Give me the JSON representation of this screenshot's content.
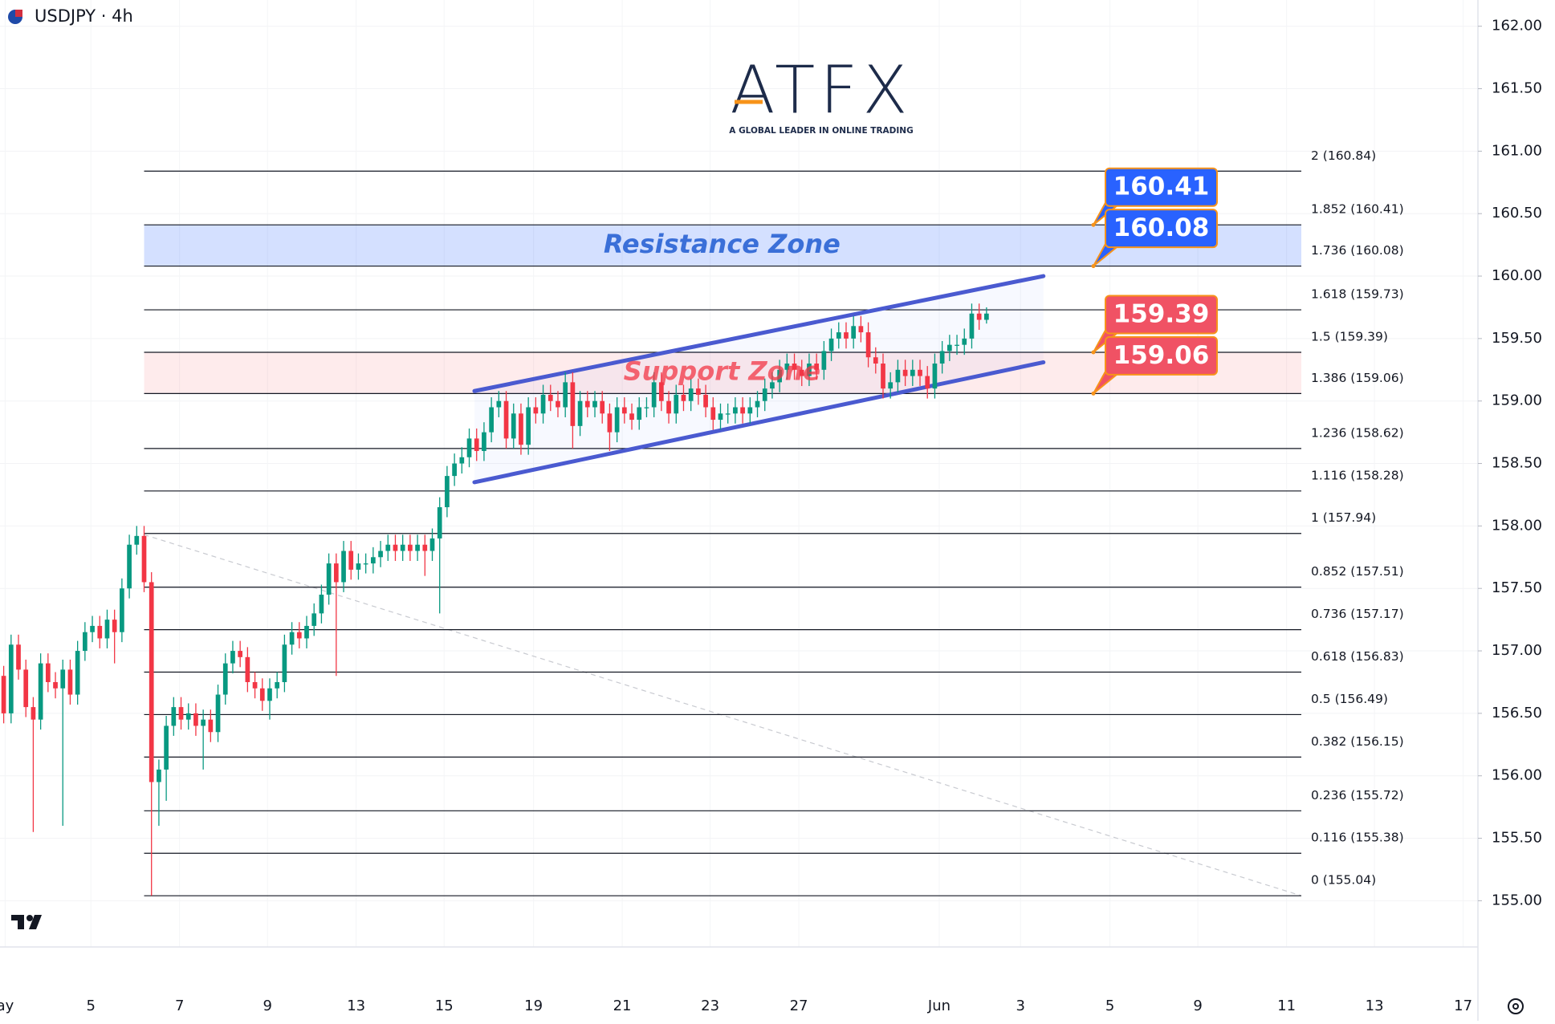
{
  "branding": {
    "logo": "ATFX",
    "tagline": "A GLOBAL LEADER IN ONLINE TRADING"
  },
  "chart_data": {
    "type": "candlestick",
    "title": "USDJPY · 4h",
    "up_color": "#089981",
    "down_color": "#f23645",
    "grid": true,
    "ylim": [
      154.63,
      162.21
    ],
    "yticks": [
      {
        "value": 155,
        "label": "155.00"
      },
      {
        "value": 155.5,
        "label": "155.50"
      },
      {
        "value": 156,
        "label": "156.00"
      },
      {
        "value": 156.5,
        "label": "156.50"
      },
      {
        "value": 157,
        "label": "157.00"
      },
      {
        "value": 157.5,
        "label": "157.50"
      },
      {
        "value": 158,
        "label": "158.00"
      },
      {
        "value": 158.5,
        "label": "158.50"
      },
      {
        "value": 159,
        "label": "159.00"
      },
      {
        "value": 159.5,
        "label": "159.50"
      },
      {
        "value": 160,
        "label": "160.00"
      },
      {
        "value": 160.5,
        "label": "160.50"
      },
      {
        "value": 161,
        "label": "161.00"
      },
      {
        "value": 161.5,
        "label": "161.50"
      },
      {
        "value": 162,
        "label": "162.00"
      }
    ],
    "xlim": [
      -0.5,
      199.5
    ],
    "xticks": [
      {
        "value": 0.2,
        "label": "ay"
      },
      {
        "value": 11.8,
        "label": "5"
      },
      {
        "value": 23.8,
        "label": "7"
      },
      {
        "value": 35.7,
        "label": "9"
      },
      {
        "value": 47.7,
        "label": "13"
      },
      {
        "value": 59.6,
        "label": "15"
      },
      {
        "value": 71.7,
        "label": "19"
      },
      {
        "value": 83.7,
        "label": "21"
      },
      {
        "value": 95.6,
        "label": "23"
      },
      {
        "value": 107.6,
        "label": "27"
      },
      {
        "value": 126.6,
        "label": "Jun"
      },
      {
        "value": 137.6,
        "label": "3"
      },
      {
        "value": 149.7,
        "label": "5"
      },
      {
        "value": 161.6,
        "label": "9"
      },
      {
        "value": 173.6,
        "label": "11"
      },
      {
        "value": 185.5,
        "label": "13"
      },
      {
        "value": 197.5,
        "label": "17"
      }
    ],
    "open": [
      156.8,
      156.5,
      157.05,
      156.85,
      156.55,
      156.45,
      156.9,
      156.75,
      156.7,
      156.85,
      156.65,
      157.0,
      157.15,
      157.2,
      157.1,
      157.25,
      157.15,
      157.5,
      157.85,
      157.92,
      157.55,
      155.95,
      156.05,
      156.4,
      156.55,
      156.45,
      156.5,
      156.4,
      156.45,
      156.35,
      156.65,
      156.9,
      157.0,
      156.95,
      156.75,
      156.7,
      156.6,
      156.7,
      156.75,
      157.05,
      157.15,
      157.1,
      157.2,
      157.3,
      157.45,
      157.7,
      157.55,
      157.8,
      157.65,
      157.7,
      157.7,
      157.75,
      157.8,
      157.85,
      157.8,
      157.85,
      157.8,
      157.85,
      157.8,
      157.9,
      158.15,
      158.4,
      158.5,
      158.55,
      158.7,
      158.6,
      158.75,
      158.95,
      159.0,
      158.7,
      158.9,
      158.65,
      158.95,
      158.9,
      159.05,
      159.0,
      158.95,
      159.15,
      158.8,
      159.0,
      158.95,
      159.0,
      158.9,
      158.75,
      158.95,
      158.9,
      158.85,
      158.95,
      158.95,
      159.15,
      159.0,
      158.9,
      159.05,
      159.0,
      159.1,
      159.05,
      158.95,
      158.85,
      158.9,
      158.9,
      158.95,
      158.9,
      158.95,
      159.0,
      159.1,
      159.15,
      159.25,
      159.3,
      159.25,
      159.2,
      159.3,
      159.25,
      159.4,
      159.5,
      159.55,
      159.5,
      159.6,
      159.55,
      159.35,
      159.3,
      159.1,
      159.15,
      159.25,
      159.2,
      159.25,
      159.2,
      159.1,
      159.3,
      159.4,
      159.45,
      159.45,
      159.5,
      159.7,
      159.65
    ],
    "high": [
      156.88,
      157.13,
      157.13,
      156.93,
      156.63,
      156.98,
      156.98,
      156.83,
      156.93,
      156.93,
      157.08,
      157.23,
      157.28,
      157.28,
      157.33,
      157.33,
      157.58,
      157.93,
      158.0,
      158.0,
      157.63,
      156.13,
      156.48,
      156.63,
      156.63,
      156.58,
      156.58,
      156.53,
      156.53,
      156.73,
      156.98,
      157.08,
      157.08,
      157.03,
      156.83,
      156.78,
      156.78,
      156.83,
      157.13,
      157.23,
      157.23,
      157.28,
      157.38,
      157.53,
      157.78,
      157.78,
      157.88,
      157.88,
      157.78,
      157.78,
      157.83,
      157.88,
      157.93,
      157.93,
      157.93,
      157.93,
      157.93,
      157.93,
      157.98,
      158.23,
      158.48,
      158.58,
      158.63,
      158.78,
      158.78,
      158.83,
      159.03,
      159.08,
      159.08,
      158.98,
      158.98,
      159.03,
      159.03,
      159.13,
      159.13,
      159.08,
      159.23,
      159.23,
      159.08,
      159.08,
      159.08,
      159.08,
      158.98,
      159.03,
      159.03,
      158.98,
      159.03,
      159.03,
      159.23,
      159.23,
      159.08,
      159.13,
      159.13,
      159.18,
      159.18,
      159.13,
      159.03,
      158.98,
      158.98,
      159.03,
      159.03,
      159.03,
      159.08,
      159.18,
      159.23,
      159.33,
      159.38,
      159.38,
      159.33,
      159.38,
      159.38,
      159.48,
      159.58,
      159.63,
      159.63,
      159.68,
      159.68,
      159.63,
      159.43,
      159.38,
      159.23,
      159.33,
      159.33,
      159.33,
      159.33,
      159.28,
      159.38,
      159.48,
      159.53,
      159.53,
      159.58,
      159.78,
      159.78,
      159.75
    ],
    "low": [
      156.42,
      156.42,
      156.77,
      156.47,
      155.55,
      156.37,
      156.67,
      156.62,
      155.6,
      156.57,
      156.57,
      156.92,
      157.07,
      157.02,
      157.02,
      156.9,
      157.07,
      157.42,
      157.77,
      157.47,
      155.04,
      155.6,
      155.8,
      156.32,
      156.37,
      156.37,
      156.32,
      156.05,
      156.27,
      156.27,
      156.57,
      156.82,
      156.87,
      156.67,
      156.62,
      156.52,
      156.45,
      156.62,
      156.67,
      156.97,
      157.02,
      157.02,
      157.12,
      157.22,
      157.37,
      156.8,
      157.47,
      157.57,
      157.57,
      157.62,
      157.62,
      157.67,
      157.72,
      157.72,
      157.72,
      157.72,
      157.72,
      157.6,
      157.72,
      157.3,
      158.07,
      158.32,
      158.42,
      158.47,
      158.52,
      158.52,
      158.67,
      158.87,
      158.62,
      158.62,
      158.57,
      158.57,
      158.82,
      158.82,
      158.92,
      158.87,
      158.87,
      158.62,
      158.72,
      158.87,
      158.87,
      158.82,
      158.6,
      158.67,
      158.82,
      158.77,
      158.77,
      158.87,
      158.87,
      158.92,
      158.82,
      158.82,
      158.92,
      158.92,
      158.97,
      158.87,
      158.77,
      158.77,
      158.82,
      158.82,
      158.82,
      158.82,
      158.87,
      158.92,
      159.02,
      159.07,
      159.17,
      159.17,
      159.12,
      159.12,
      159.17,
      159.17,
      159.32,
      159.42,
      159.42,
      159.42,
      159.47,
      159.27,
      159.22,
      159.02,
      159.02,
      159.07,
      159.12,
      159.12,
      159.12,
      159.02,
      159.02,
      159.22,
      159.32,
      159.37,
      159.37,
      159.42,
      159.57,
      159.62
    ],
    "close": [
      156.5,
      157.05,
      156.85,
      156.55,
      156.45,
      156.9,
      156.75,
      156.7,
      156.85,
      156.65,
      157.0,
      157.15,
      157.2,
      157.1,
      157.25,
      157.15,
      157.5,
      157.85,
      157.92,
      157.55,
      155.95,
      156.05,
      156.4,
      156.55,
      156.45,
      156.5,
      156.4,
      156.45,
      156.35,
      156.65,
      156.9,
      157.0,
      156.95,
      156.75,
      156.7,
      156.6,
      156.7,
      156.75,
      157.05,
      157.15,
      157.1,
      157.2,
      157.3,
      157.45,
      157.7,
      157.55,
      157.8,
      157.65,
      157.7,
      157.7,
      157.75,
      157.8,
      157.85,
      157.8,
      157.85,
      157.8,
      157.85,
      157.8,
      157.9,
      158.15,
      158.4,
      158.5,
      158.55,
      158.7,
      158.6,
      158.75,
      158.95,
      159.0,
      158.7,
      158.9,
      158.65,
      158.95,
      158.9,
      159.05,
      159.0,
      158.95,
      159.15,
      158.8,
      159.0,
      158.95,
      159.0,
      158.9,
      158.75,
      158.95,
      158.9,
      158.85,
      158.95,
      158.95,
      159.15,
      159.0,
      158.9,
      159.05,
      159.0,
      159.1,
      159.05,
      158.95,
      158.85,
      158.9,
      158.9,
      158.95,
      158.9,
      158.95,
      159.0,
      159.1,
      159.15,
      159.25,
      159.3,
      159.25,
      159.2,
      159.3,
      159.25,
      159.4,
      159.5,
      159.55,
      159.5,
      159.6,
      159.55,
      159.35,
      159.3,
      159.1,
      159.15,
      159.25,
      159.2,
      159.25,
      159.2,
      159.1,
      159.3,
      159.4,
      159.45,
      159.45,
      159.5,
      159.7,
      159.65,
      159.7
    ],
    "fib_start": 19,
    "fib_end": 175.6,
    "fib_levels": [
      {
        "value": 160.84,
        "label": "2 (160.84)"
      },
      {
        "value": 160.41,
        "label": "1.852 (160.41)"
      },
      {
        "value": 160.08,
        "label": "1.736 (160.08)"
      },
      {
        "value": 159.73,
        "label": "1.618 (159.73)"
      },
      {
        "value": 159.39,
        "label": "1.5 (159.39)"
      },
      {
        "value": 159.06,
        "label": "1.386 (159.06)"
      },
      {
        "value": 158.62,
        "label": "1.236 (158.62)"
      },
      {
        "value": 158.28,
        "label": "1.116 (158.28)"
      },
      {
        "value": 157.94,
        "label": "1 (157.94)"
      },
      {
        "value": 157.51,
        "label": "0.852 (157.51)"
      },
      {
        "value": 157.17,
        "label": "0.736 (157.17)"
      },
      {
        "value": 156.83,
        "label": "0.618 (156.83)"
      },
      {
        "value": 156.49,
        "label": "0.5 (156.49)"
      },
      {
        "value": 156.15,
        "label": "0.382 (156.15)"
      },
      {
        "value": 155.72,
        "label": "0.236 (155.72)"
      },
      {
        "value": 155.38,
        "label": "0.116 (155.38)"
      },
      {
        "value": 155.04,
        "label": "0 (155.04)"
      }
    ],
    "zones": [
      {
        "label": "Resistance Zone",
        "from": 160.08,
        "to": 160.41,
        "color": "#2962ff"
      },
      {
        "label": "Support Zone",
        "from": 159.06,
        "to": 159.39,
        "color": "#f23645"
      }
    ],
    "zone_label_x": 97.2,
    "channel": {
      "color": "#4a5ad0",
      "upper": [
        [
          63.7,
          159.08
        ],
        [
          140.7,
          160.0
        ]
      ],
      "lower": [
        [
          63.7,
          158.35
        ],
        [
          140.7,
          159.31
        ]
      ]
    },
    "trend_line": [
      [
        19,
        157.93
      ],
      [
        175.6,
        155.04
      ]
    ],
    "price_labels": [
      {
        "value": 160.41,
        "color": "#2962ff"
      },
      {
        "value": 160.08,
        "color": "#2962ff"
      },
      {
        "value": 159.39,
        "color": "#f05264"
      },
      {
        "value": 159.06,
        "color": "#f05264"
      }
    ]
  }
}
